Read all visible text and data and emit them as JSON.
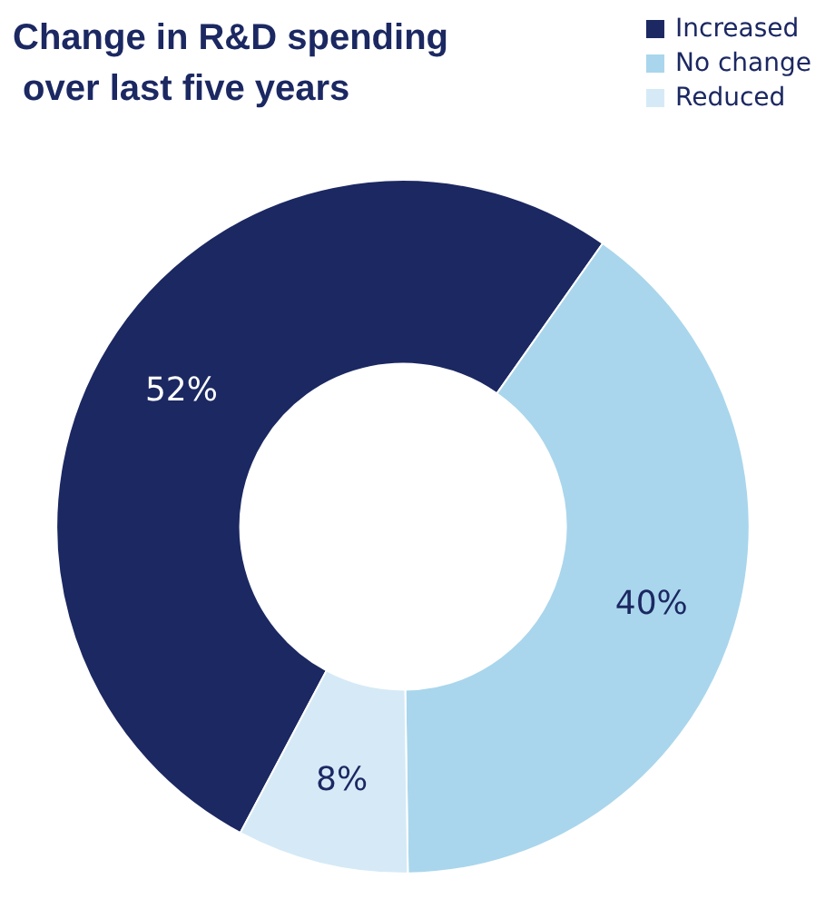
{
  "chart_data": {
    "type": "donut",
    "title": "Change in R&D spending over last five years",
    "categories": [
      "Increased",
      "No change",
      "Reduced"
    ],
    "values": [
      52,
      40,
      8
    ],
    "colors": [
      "#1b2862",
      "#a9d6ec",
      "#d5eaf6"
    ],
    "value_labels": [
      "52%",
      "40%",
      "8%"
    ],
    "legend": "top right"
  }
}
